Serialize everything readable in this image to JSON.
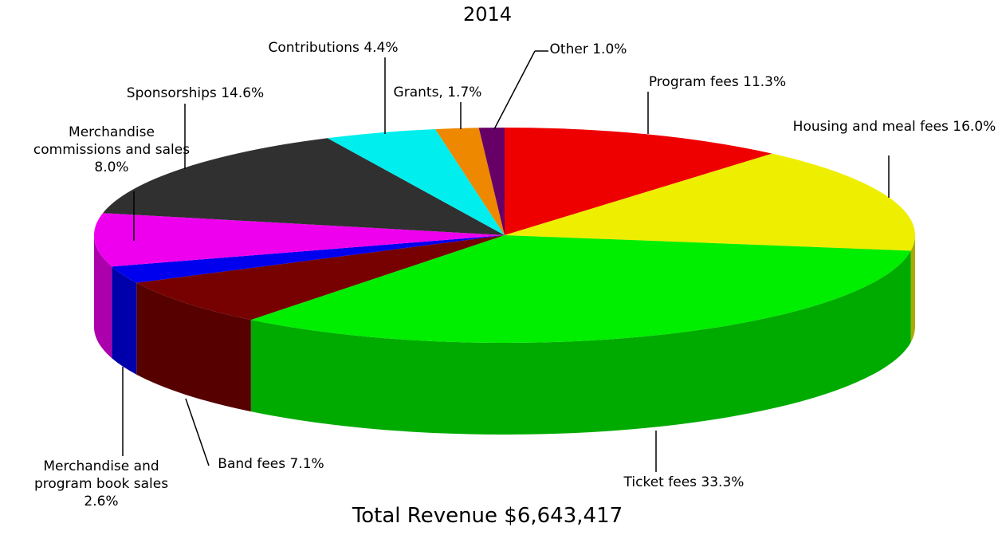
{
  "chart_data": {
    "type": "pie",
    "title": "2014",
    "subtitle": "Total Revenue $6,643,417",
    "categories": [
      "Program fees",
      "Housing and meal fees",
      "Ticket fees",
      "Band fees",
      "Merchandise and program book sales",
      "Merchandise commissions and sales",
      "Sponsorships",
      "Contributions",
      "Grants,",
      "Other"
    ],
    "values": [
      11.3,
      16.0,
      33.3,
      7.1,
      2.6,
      8.0,
      14.6,
      4.4,
      1.7,
      1.0
    ],
    "value_labels": [
      "11.3%",
      "16.0%",
      "33.3%",
      "7.1%",
      "2.6%",
      "8.0%",
      "14.6%",
      "4.4%",
      "1.7%",
      "1.0%"
    ],
    "colors": [
      "#ee0000",
      "#eeee00",
      "#00ee00",
      "#770000",
      "#0000ee",
      "#ee00ee",
      "#303030",
      "#00eeee",
      "#ee8800",
      "#660066"
    ]
  }
}
